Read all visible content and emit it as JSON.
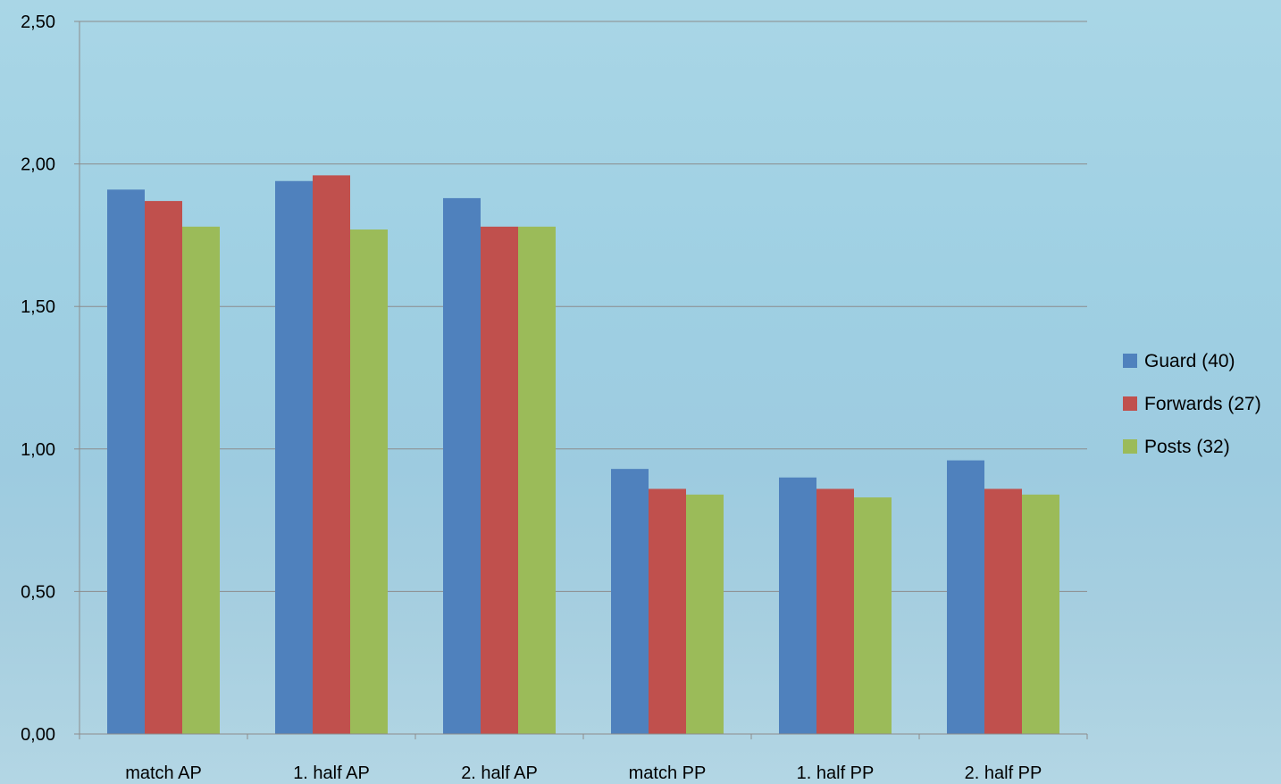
{
  "chart_data": {
    "type": "bar",
    "title": "",
    "xlabel": "",
    "ylabel": "",
    "categories": [
      "match AP",
      "1. half AP",
      "2. half AP",
      "match PP",
      "1. half PP",
      "2. half PP"
    ],
    "ylim": [
      0,
      2.5
    ],
    "yticks": [
      "0,00",
      "0,50",
      "1,00",
      "1,50",
      "2,00",
      "2,50"
    ],
    "ytick_values": [
      0,
      0.5,
      1.0,
      1.5,
      2.0,
      2.5
    ],
    "grid": true,
    "legend_position": "right",
    "series": [
      {
        "name": "Guard (40)",
        "color": "#4f81bd",
        "values": [
          1.91,
          1.94,
          1.88,
          0.93,
          0.9,
          0.96
        ]
      },
      {
        "name": "Forwards (27)",
        "color": "#c0504d",
        "values": [
          1.87,
          1.96,
          1.78,
          0.86,
          0.86,
          0.86
        ]
      },
      {
        "name": "Posts (32)",
        "color": "#9bbb59",
        "values": [
          1.78,
          1.77,
          1.78,
          0.84,
          0.83,
          0.84
        ]
      }
    ]
  }
}
